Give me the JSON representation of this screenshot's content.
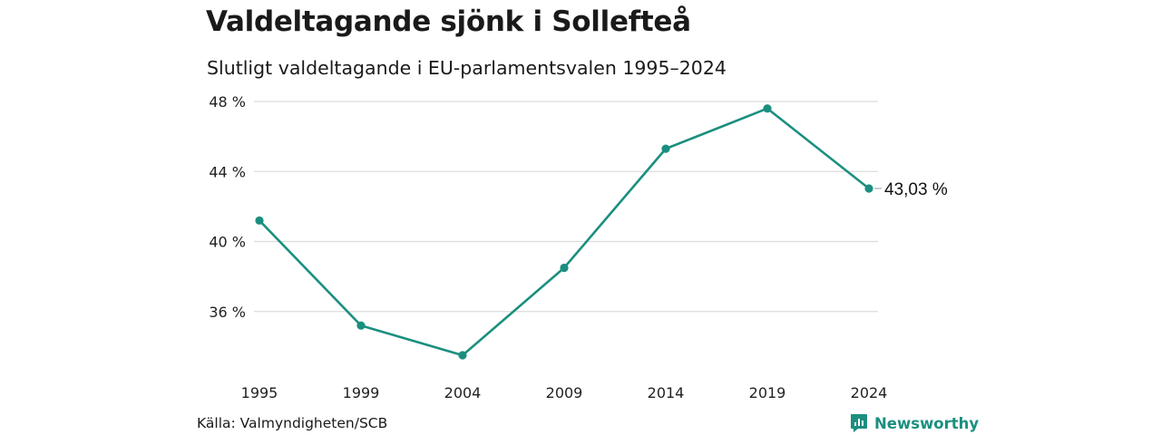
{
  "title": "Valdeltagande sjönk i Sollefteå",
  "subtitle": "Slutligt valdeltagande i EU-parlamentsvalen 1995–2024",
  "source": "Källa: Valmyndigheten/SCB",
  "brand": {
    "name": "Newsworthy",
    "icon": "newsworthy-logo-icon",
    "color": "#1b8f7f"
  },
  "chart_data": {
    "type": "line",
    "categories": [
      "1995",
      "1999",
      "2004",
      "2009",
      "2014",
      "2019",
      "2024"
    ],
    "values": [
      41.2,
      35.2,
      33.5,
      38.5,
      45.3,
      47.6,
      43.03
    ],
    "y_ticks": [
      36,
      40,
      44,
      48
    ],
    "y_tick_labels": [
      "36 %",
      "40 %",
      "44 %",
      "48 %"
    ],
    "ylim": [
      32,
      48
    ],
    "end_label": "43,03 %",
    "grid": true,
    "color": "#1b8f7f",
    "title": "Valdeltagande sjönk i Sollefteå",
    "xlabel": "",
    "ylabel": ""
  }
}
